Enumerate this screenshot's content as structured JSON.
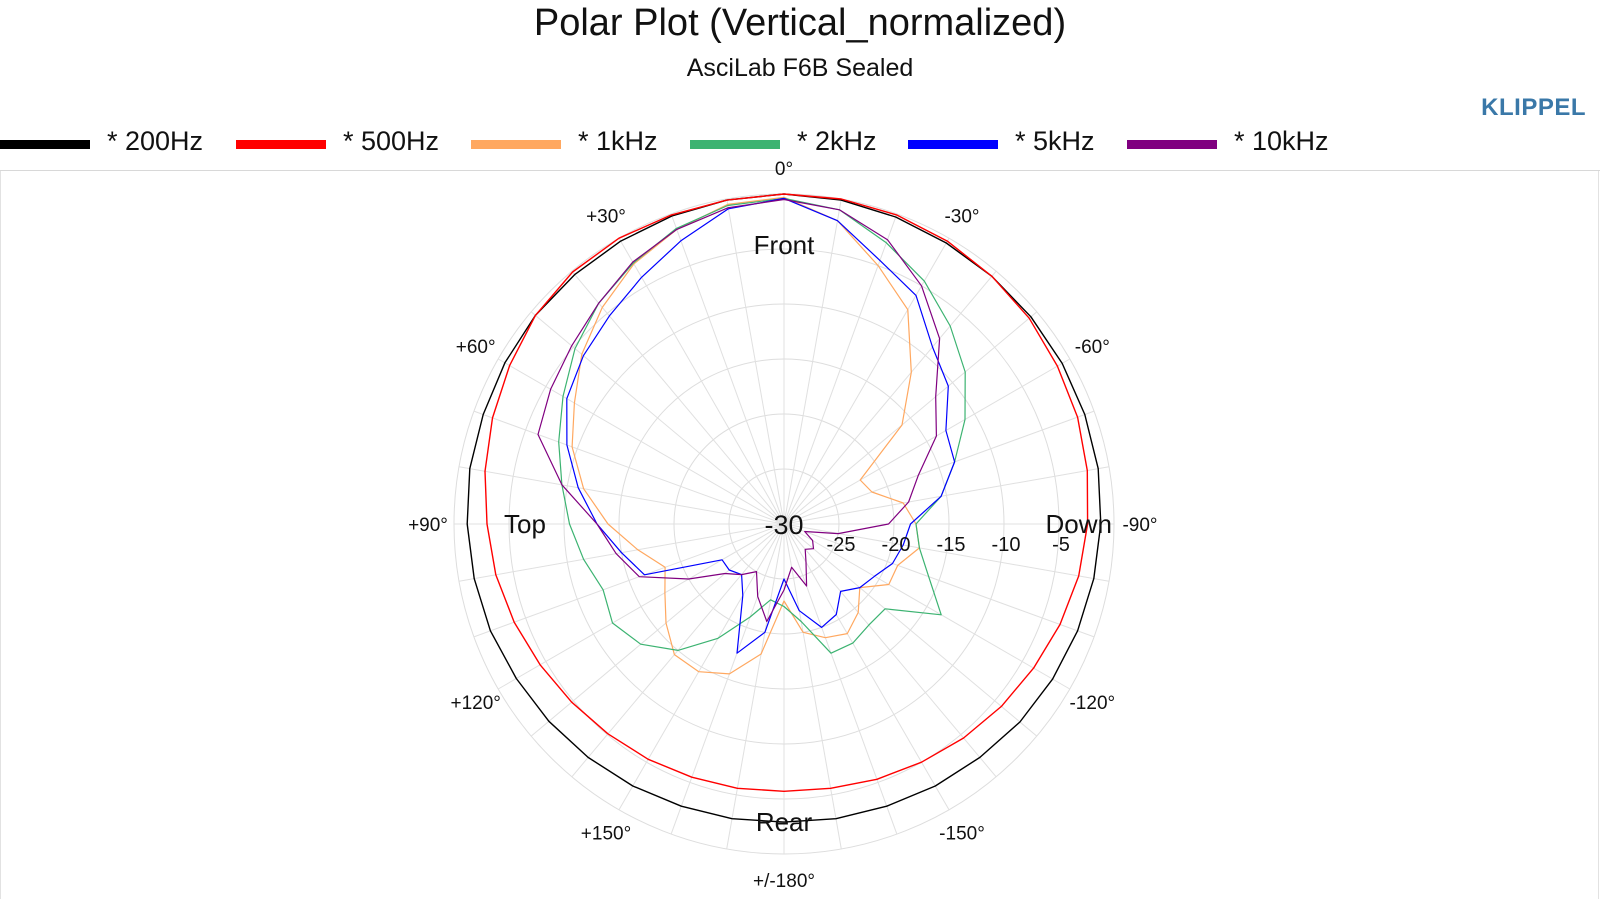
{
  "header": {
    "title": "Polar Plot (Vertical_normalized)",
    "subtitle": "AsciLab F6B Sealed",
    "brand": "KLIPPEL"
  },
  "legend": [
    {
      "label": "* 200Hz",
      "color": "#000000"
    },
    {
      "label": "* 500Hz",
      "color": "#ff0000"
    },
    {
      "label": "* 1kHz",
      "color": "#ffa860"
    },
    {
      "label": "* 2kHz",
      "color": "#3cb371"
    },
    {
      "label": "* 5kHz",
      "color": "#0000ff"
    },
    {
      "label": "* 10kHz",
      "color": "#800080"
    }
  ],
  "chart_data": {
    "type": "polar",
    "title": "Polar Plot (Vertical_normalized)",
    "subtitle": "AsciLab F6B Sealed",
    "radial_range_db": [
      -30,
      0
    ],
    "radial_tick_labels": [
      "-30",
      "-25",
      "-20",
      "-15",
      "-10",
      "-5"
    ],
    "angle_labels": [
      {
        "angle": 0,
        "text": "0°"
      },
      {
        "angle": 30,
        "text": "+30°"
      },
      {
        "angle": -30,
        "text": "-30°"
      },
      {
        "angle": 60,
        "text": "+60°"
      },
      {
        "angle": -60,
        "text": "-60°"
      },
      {
        "angle": 90,
        "text": "+90°"
      },
      {
        "angle": -90,
        "text": "-90°"
      },
      {
        "angle": 120,
        "text": "+120°"
      },
      {
        "angle": -120,
        "text": "-120°"
      },
      {
        "angle": 150,
        "text": "+150°"
      },
      {
        "angle": -150,
        "text": "-150°"
      },
      {
        "angle": 180,
        "text": "+/-180°"
      }
    ],
    "direction_labels": {
      "front": "Front",
      "rear": "Rear",
      "top": "Top",
      "down": "Down"
    },
    "angles_deg": [
      0,
      10,
      20,
      30,
      40,
      50,
      60,
      70,
      80,
      90,
      100,
      110,
      120,
      130,
      140,
      150,
      160,
      170,
      180,
      -170,
      -160,
      -150,
      -140,
      -130,
      -120,
      -110,
      -100,
      -90,
      -80,
      -70,
      -60,
      -50,
      -40,
      -30,
      -20,
      -10
    ],
    "series": [
      {
        "name": "* 200Hz",
        "color": "#000000",
        "values_db": [
          0,
          -0.1,
          -0.2,
          -0.3,
          -0.4,
          -0.5,
          -0.7,
          -0.9,
          -1.0,
          -1.2,
          -1.4,
          -1.6,
          -1.9,
          -2.1,
          -2.3,
          -2.5,
          -2.7,
          -2.8,
          -2.9,
          -2.8,
          -2.7,
          -2.5,
          -2.3,
          -2.0,
          -1.8,
          -1.6,
          -1.4,
          -1.2,
          -1.0,
          -0.9,
          -0.8,
          -0.7,
          -0.6,
          -0.5,
          -0.3,
          -0.1
        ]
      },
      {
        "name": "* 500Hz",
        "color": "#ff0000",
        "values_db": [
          0,
          -0.1,
          -0.1,
          0,
          -0.1,
          -0.5,
          -1.2,
          -1.8,
          -2.4,
          -3.0,
          -3.4,
          -3.9,
          -4.4,
          -4.8,
          -5.1,
          -5.3,
          -5.5,
          -5.6,
          -5.7,
          -5.6,
          -5.3,
          -5.0,
          -4.6,
          -4.2,
          -3.8,
          -3.3,
          -2.8,
          -2.4,
          -2.0,
          -1.6,
          -1.3,
          -0.9,
          -0.6,
          -0.3,
          -0.1,
          0
        ]
      },
      {
        "name": "* 1kHz",
        "color": "#ffa860",
        "values_db": [
          -0.3,
          -0.5,
          -1.5,
          -2.7,
          -4.3,
          -6.0,
          -8.0,
          -9.5,
          -11.5,
          -14.0,
          -16.5,
          -18.5,
          -17.5,
          -16.0,
          -14.5,
          -14.5,
          -15.5,
          -18.0,
          -23.0,
          -20.0,
          -19.0,
          -18.5,
          -19.5,
          -21.0,
          -19.0,
          -19.0,
          -17.5,
          -18.0,
          -19.0,
          -21.5,
          -22.0,
          -16.0,
          -12.0,
          -7.5,
          -5.0,
          -2.0
        ]
      },
      {
        "name": "* 2kHz",
        "color": "#3cb371",
        "values_db": [
          -0.4,
          -0.6,
          -1.4,
          -2.6,
          -3.8,
          -5.2,
          -6.8,
          -8.2,
          -9.5,
          -10.5,
          -11.5,
          -12.5,
          -12.0,
          -13.0,
          -15.0,
          -18.0,
          -21.0,
          -23.0,
          -22.5,
          -21.0,
          -17.5,
          -17.5,
          -18.0,
          -18.0,
          -13.5,
          -16.0,
          -17.5,
          -18.0,
          -15.5,
          -13.5,
          -11.0,
          -8.5,
          -6.5,
          -4.5,
          -2.8,
          -1.0
        ]
      },
      {
        "name": "* 5kHz",
        "color": "#0000ff",
        "values_db": [
          -0.4,
          -0.9,
          -2.6,
          -4.1,
          -5.3,
          -6.2,
          -7.2,
          -9.0,
          -11.0,
          -13.0,
          -15.0,
          -16.5,
          -23.5,
          -23.5,
          -24.0,
          -22.5,
          -17.5,
          -20.0,
          -25.0,
          -22.0,
          -20.0,
          -20.5,
          -22.0,
          -21.0,
          -20.5,
          -19.5,
          -19.0,
          -18.5,
          -15.5,
          -13.5,
          -13.0,
          -10.5,
          -9.0,
          -6.0,
          -4.5,
          -2.0
        ]
      },
      {
        "name": "* 10kHz",
        "color": "#800080",
        "values_db": [
          -0.5,
          -0.8,
          -1.5,
          -2.5,
          -3.8,
          -4.8,
          -5.5,
          -6.2,
          -9.5,
          -13.0,
          -14.5,
          -16.0,
          -20.0,
          -23.0,
          -24.0,
          -25.0,
          -23.0,
          -21.0,
          -24.0,
          -26.0,
          -24.0,
          -26.0,
          -27.0,
          -26.5,
          -27.0,
          -28.0,
          -25.0,
          -20.5,
          -18.5,
          -17.0,
          -14.0,
          -12.0,
          -8.0,
          -5.0,
          -2.5,
          -1.0
        ]
      }
    ],
    "grid": true,
    "legend_position": "top"
  }
}
